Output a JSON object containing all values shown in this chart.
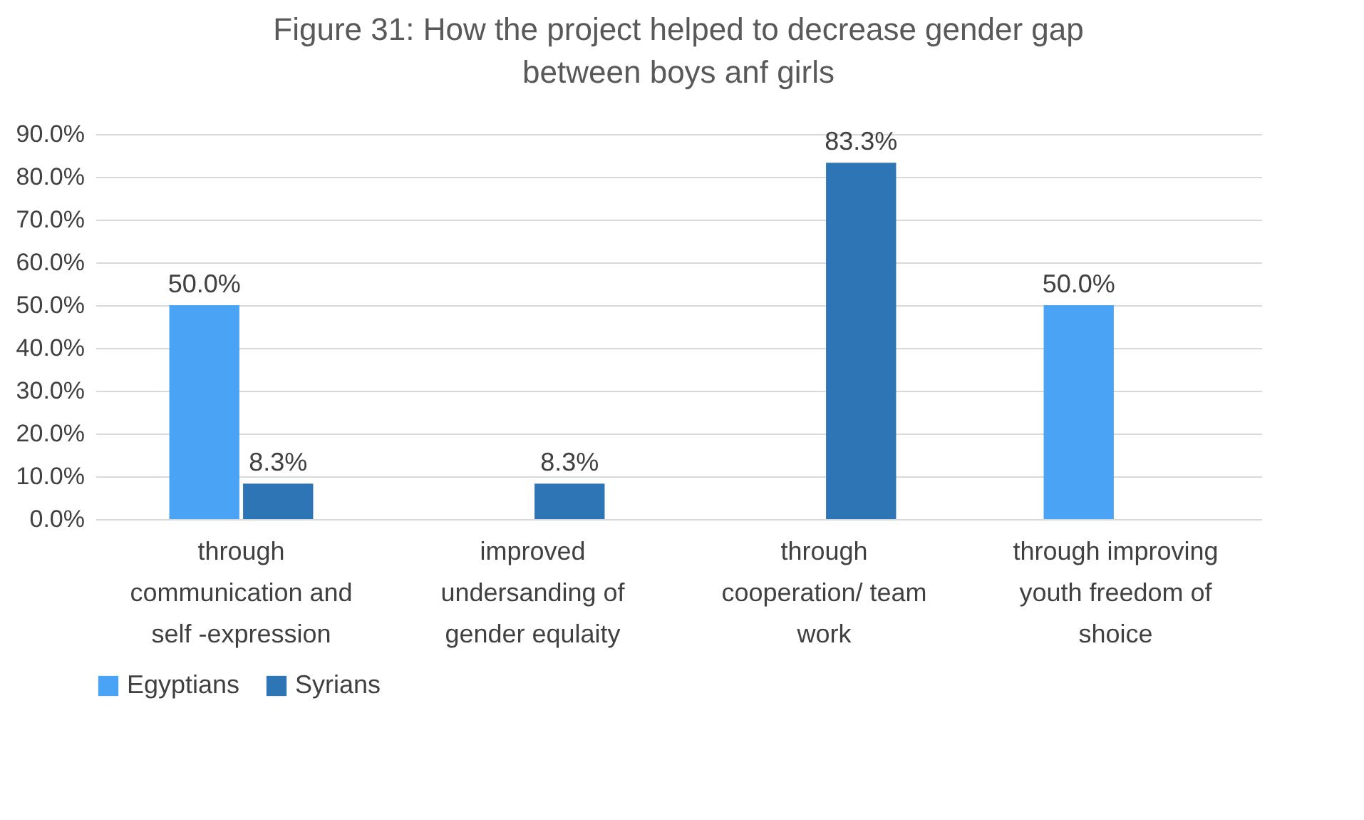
{
  "chart_data": {
    "type": "bar",
    "title": "Figure 31: How the project helped to decrease gender gap between boys anf girls",
    "categories": [
      "through communication and self -expression",
      "improved undersanding of gender equlaity",
      "through cooperation/ team work",
      "through improving youth freedom of shoice"
    ],
    "series": [
      {
        "name": "Egyptians",
        "color": "#4ba3f5",
        "values": [
          50.0,
          null,
          null,
          50.0
        ],
        "value_labels": [
          "50.0%",
          null,
          null,
          "50.0%"
        ]
      },
      {
        "name": "Syrians",
        "color": "#2e75b6",
        "values": [
          8.3,
          8.3,
          83.3,
          null
        ],
        "value_labels": [
          "8.3%",
          "8.3%",
          "83.3%",
          null
        ]
      }
    ],
    "ylim": [
      0,
      90
    ],
    "yticks": [
      {
        "value": 0,
        "label": "0.0%"
      },
      {
        "value": 10,
        "label": "10.0%"
      },
      {
        "value": 20,
        "label": "20.0%"
      },
      {
        "value": 30,
        "label": "30.0%"
      },
      {
        "value": 40,
        "label": "40.0%"
      },
      {
        "value": 50,
        "label": "50.0%"
      },
      {
        "value": 60,
        "label": "60.0%"
      },
      {
        "value": 70,
        "label": "70.0%"
      },
      {
        "value": 80,
        "label": "80.0%"
      },
      {
        "value": 90,
        "label": "90.0%"
      }
    ],
    "grid": "y",
    "legend": "bottom"
  }
}
